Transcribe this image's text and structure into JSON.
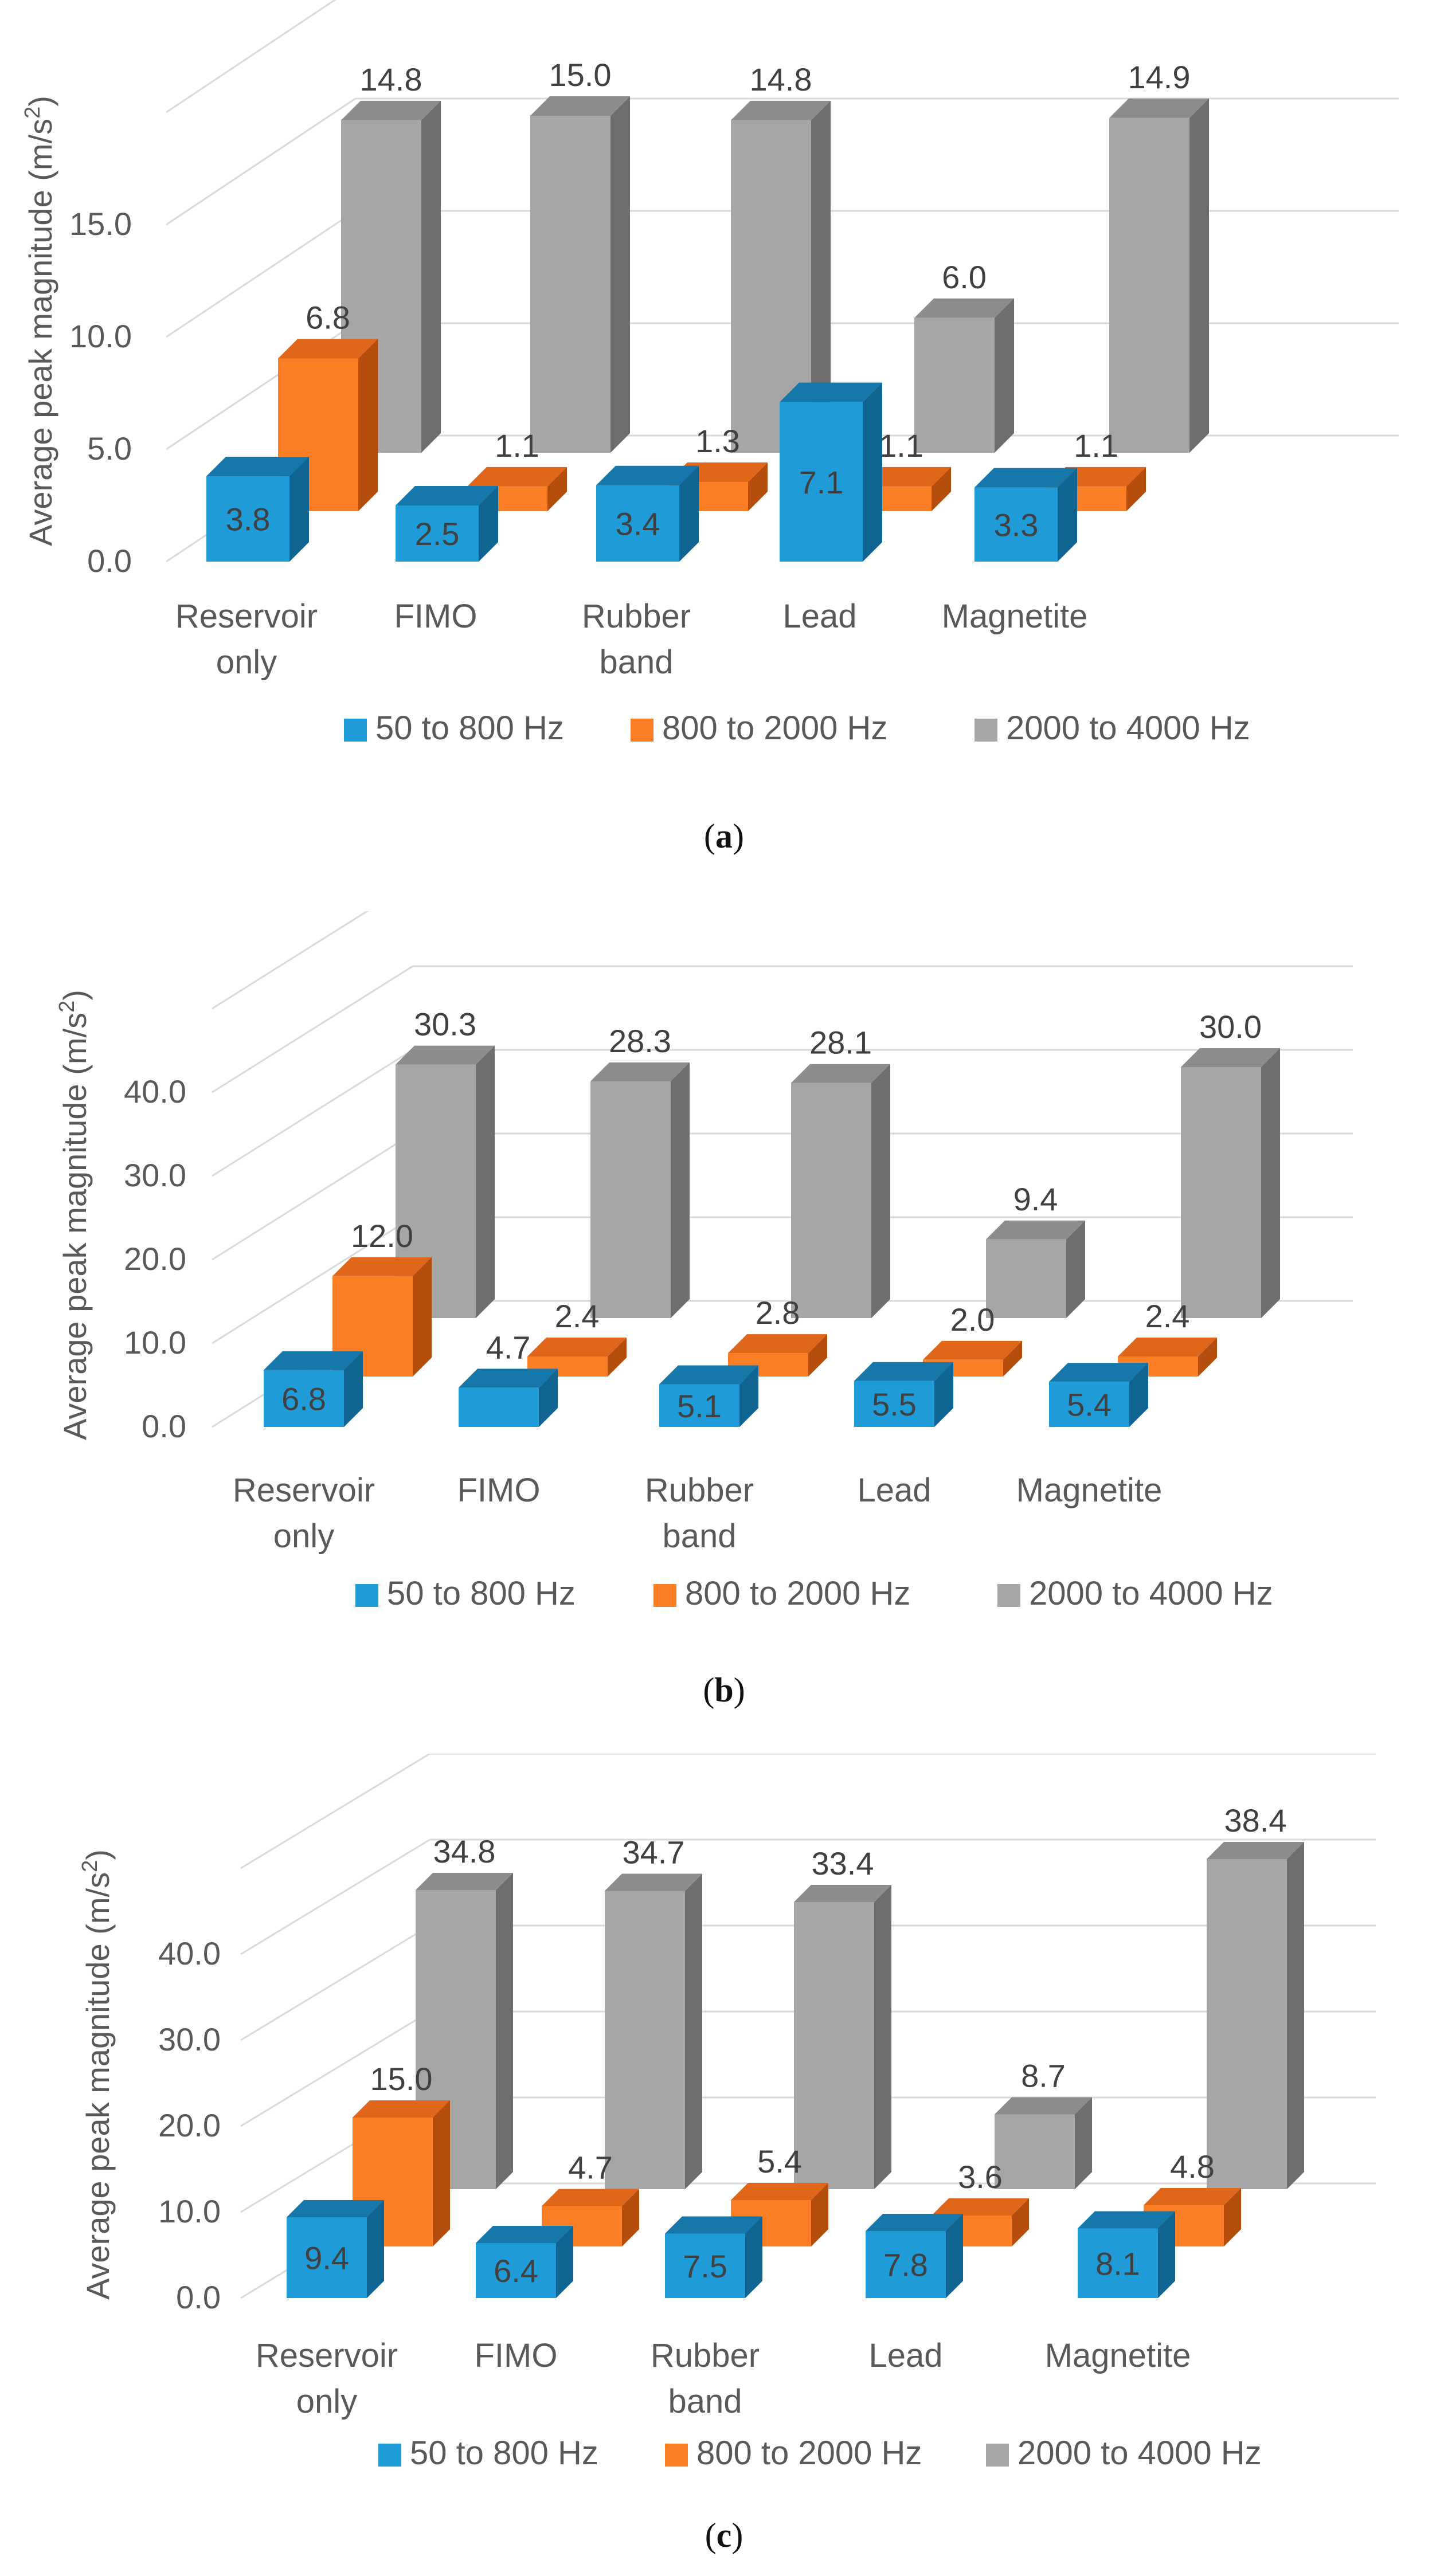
{
  "colors": {
    "s0": {
      "front": "#1f9bd7",
      "top": "#1677aa",
      "side": "#0f6491"
    },
    "s1": {
      "front": "#fb7d24",
      "top": "#e0671a",
      "side": "#b54d0c"
    },
    "s2": {
      "front": "#a6a6a6",
      "top": "#8c8c8c",
      "side": "#6e6e6e"
    },
    "grid": "#d9d9d9",
    "text": "#595959"
  },
  "chart_data": [
    {
      "type": "bar",
      "caption": "(a)",
      "caption_letter": "a",
      "ylabel": "Average peak magnitude (m/s²)",
      "ylabel_main": "Average peak magnitude (m/s",
      "ylabel_sup": "2",
      "ylabel_end": ")",
      "ylim": [
        0,
        20
      ],
      "yticks": [
        0,
        5,
        10,
        15
      ],
      "ytick_labels": [
        "0.0",
        "5.0",
        "10.0",
        "15.0"
      ],
      "categories": [
        [
          "Reservoir",
          "only"
        ],
        [
          "FIMO"
        ],
        [
          "Rubber",
          "band"
        ],
        [
          "Lead"
        ],
        [
          "Magnetite"
        ]
      ],
      "series": [
        {
          "name": "50 to 800 Hz",
          "values": [
            3.8,
            2.5,
            3.4,
            7.1,
            3.3
          ]
        },
        {
          "name": "800 to 2000 Hz",
          "values": [
            6.8,
            1.1,
            1.3,
            1.1,
            1.1
          ]
        },
        {
          "name": "2000 to 4000 Hz",
          "values": [
            14.8,
            15.0,
            14.8,
            6.0,
            14.9
          ]
        }
      ],
      "data_labels": [
        [
          "3.8",
          "2.5",
          "3.4",
          "7.1",
          "3.3"
        ],
        [
          "6.8",
          "1.1",
          "1.3",
          "1.1",
          "1.1"
        ],
        [
          "14.8",
          "15.0",
          "14.8",
          "6.0",
          "14.9"
        ]
      ]
    },
    {
      "type": "bar",
      "caption": "(b)",
      "caption_letter": "b",
      "ylabel": "Average peak magnitude (m/s²)",
      "ylabel_main": "Average peak magnitude (m/s",
      "ylabel_sup": "2",
      "ylabel_end": ")",
      "ylim": [
        0,
        50
      ],
      "yticks": [
        0,
        10,
        20,
        30,
        40
      ],
      "ytick_labels": [
        "0.0",
        "10.0",
        "20.0",
        "30.0",
        "40.0"
      ],
      "categories": [
        [
          "Reservoir",
          "only"
        ],
        [
          "FIMO"
        ],
        [
          "Rubber",
          "band"
        ],
        [
          "Lead"
        ],
        [
          "Magnetite"
        ]
      ],
      "series": [
        {
          "name": "50 to 800 Hz",
          "values": [
            6.8,
            4.7,
            5.1,
            5.5,
            5.4
          ]
        },
        {
          "name": "800 to 2000 Hz",
          "values": [
            12.0,
            2.4,
            2.8,
            2.0,
            2.4
          ]
        },
        {
          "name": "2000 to 4000 Hz",
          "values": [
            30.3,
            28.3,
            28.1,
            9.4,
            30.0
          ]
        }
      ],
      "data_labels": [
        [
          "6.8",
          "4.7",
          "5.1",
          "5.5",
          "5.4"
        ],
        [
          "12.0",
          "2.4",
          "2.8",
          "2.0",
          "2.4"
        ],
        [
          "30.3",
          "28.3",
          "28.1",
          "9.4",
          "30.0"
        ]
      ]
    },
    {
      "type": "bar",
      "caption": "(c)",
      "caption_letter": "c",
      "ylabel": "Average peak magnitude (m/s²)",
      "ylabel_main": "Average peak magnitude (m/s",
      "ylabel_sup": "2",
      "ylabel_end": ")",
      "ylim": [
        0,
        50
      ],
      "yticks": [
        0,
        10,
        20,
        30,
        40
      ],
      "ytick_labels": [
        "0.0",
        "10.0",
        "20.0",
        "30.0",
        "40.0"
      ],
      "categories": [
        [
          "Reservoir",
          "only"
        ],
        [
          "FIMO"
        ],
        [
          "Rubber",
          "band"
        ],
        [
          "Lead"
        ],
        [
          "Magnetite"
        ]
      ],
      "series": [
        {
          "name": "50 to 800 Hz",
          "values": [
            9.4,
            6.4,
            7.5,
            7.8,
            8.1
          ]
        },
        {
          "name": "800 to 2000 Hz",
          "values": [
            15.0,
            4.7,
            5.4,
            3.6,
            4.8
          ]
        },
        {
          "name": "2000 to 4000 Hz",
          "values": [
            34.8,
            34.7,
            33.4,
            8.7,
            38.4
          ]
        }
      ],
      "data_labels": [
        [
          "9.4",
          "6.4",
          "7.5",
          "7.8",
          "8.1"
        ],
        [
          "15.0",
          "4.7",
          "5.4",
          "3.6",
          "4.8"
        ],
        [
          "34.8",
          "34.7",
          "33.4",
          "8.7",
          "38.4"
        ]
      ]
    }
  ]
}
